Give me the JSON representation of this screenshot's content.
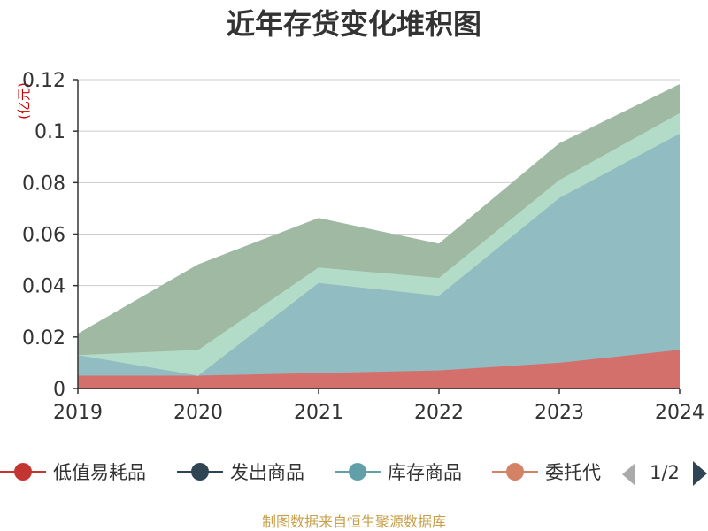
{
  "chart_data": {
    "type": "area",
    "stacked": true,
    "title": "近年存货变化堆积图",
    "unit_label": "(亿元)",
    "categories": [
      "2019",
      "2020",
      "2021",
      "2022",
      "2023",
      "2024"
    ],
    "ylim": [
      0,
      0.12
    ],
    "yticks": [
      "0",
      "0.02",
      "0.04",
      "0.06",
      "0.08",
      "0.1",
      "0.12"
    ],
    "grid": true,
    "legend_position": "bottom",
    "series": [
      {
        "name": "低值易耗品",
        "color": "#c23531",
        "fill": "#d4706c",
        "values": [
          0.005,
          0.005,
          0.006,
          0.007,
          0.01,
          0.015
        ]
      },
      {
        "name": "发出商品",
        "color": "#2f4554",
        "fill": "#2f4554",
        "values": [
          0,
          0,
          0,
          0,
          0,
          0
        ]
      },
      {
        "name": "库存商品",
        "color": "#61a0a8",
        "fill": "#91bcc2",
        "values": [
          0.008,
          0.0,
          0.035,
          0.029,
          0.064,
          0.084
        ]
      },
      {
        "name": "委托代",
        "color": "#d48265",
        "fill": "#d48265",
        "values": [
          0,
          0,
          0,
          0,
          0,
          0
        ]
      },
      {
        "name": "",
        "color": "#91c7ae",
        "fill": "#b2dcc7",
        "values": [
          0.0,
          0.01,
          0.006,
          0.007,
          0.007,
          0.008
        ]
      },
      {
        "name": "",
        "color": "#749f83",
        "fill": "#9fb9a3",
        "values": [
          0.008,
          0.033,
          0.019,
          0.013,
          0.014,
          0.011
        ]
      }
    ],
    "visible_legend_count": 4,
    "legend_page": "1/2"
  },
  "footer": {
    "source": "制图数据来自恒生聚源数据库"
  }
}
